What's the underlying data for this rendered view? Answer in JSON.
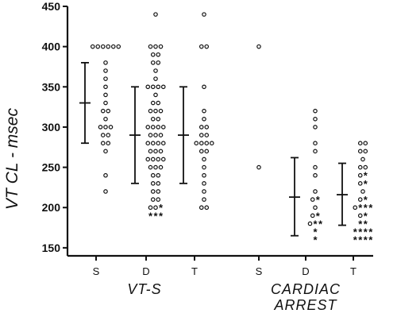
{
  "chart_data": {
    "type": "scatter",
    "ylabel": "VT CL - msec",
    "ylim": [
      140,
      450
    ],
    "yticks": [
      150,
      200,
      250,
      300,
      350,
      400,
      450
    ],
    "categories": [
      {
        "label": "S",
        "group": 0
      },
      {
        "label": "D",
        "group": 0
      },
      {
        "label": "T",
        "group": 0
      },
      {
        "label": "S",
        "group": 1
      },
      {
        "label": "D",
        "group": 1
      },
      {
        "label": "T",
        "group": 1
      }
    ],
    "groups": [
      "VT-S",
      "CARDIAC ARREST"
    ],
    "markers": {
      "open": "o",
      "filled": "*"
    },
    "series": [
      {
        "category": 0,
        "summary": {
          "mean": 330,
          "lower": 280,
          "upper": 380
        },
        "open": [
          400,
          400,
          400,
          400,
          400,
          400,
          380,
          370,
          360,
          350,
          340,
          330,
          320,
          320,
          310,
          300,
          300,
          300,
          290,
          290,
          280,
          280,
          270,
          240,
          220
        ],
        "filled": []
      },
      {
        "category": 1,
        "summary": {
          "mean": 290,
          "lower": 230,
          "upper": 350
        },
        "open": [
          440,
          400,
          400,
          400,
          390,
          390,
          380,
          380,
          370,
          360,
          350,
          350,
          350,
          350,
          340,
          330,
          330,
          320,
          320,
          320,
          310,
          310,
          300,
          300,
          300,
          300,
          290,
          290,
          290,
          280,
          280,
          280,
          280,
          270,
          270,
          270,
          260,
          260,
          260,
          260,
          250,
          250,
          250,
          240,
          240,
          230,
          230,
          220,
          220,
          210,
          210,
          200,
          200
        ],
        "filled": [
          200,
          190,
          190,
          190
        ]
      },
      {
        "category": 2,
        "summary": {
          "mean": 290,
          "lower": 230,
          "upper": 350
        },
        "open": [
          440,
          400,
          400,
          350,
          320,
          310,
          300,
          300,
          290,
          290,
          280,
          280,
          280,
          280,
          270,
          270,
          260,
          250,
          240,
          230,
          220,
          210,
          200,
          200
        ],
        "filled": []
      },
      {
        "category": 3,
        "summary": null,
        "open": [
          400,
          250
        ],
        "filled": []
      },
      {
        "category": 4,
        "summary": {
          "mean": 213,
          "lower": 165,
          "upper": 262
        },
        "open": [
          320,
          310,
          300,
          280,
          270,
          250,
          240,
          220,
          210,
          200,
          190,
          180
        ],
        "filled": [
          210,
          190,
          180,
          180,
          170,
          160
        ]
      },
      {
        "category": 5,
        "summary": {
          "mean": 216,
          "lower": 178,
          "upper": 255
        },
        "open": [
          280,
          280,
          270,
          270,
          260,
          250,
          250,
          240,
          230,
          220,
          210,
          200,
          190
        ],
        "filled": [
          240,
          230,
          210,
          200,
          200,
          200,
          190,
          180,
          180,
          170,
          170,
          170,
          170,
          160,
          160,
          160,
          160
        ]
      }
    ]
  }
}
